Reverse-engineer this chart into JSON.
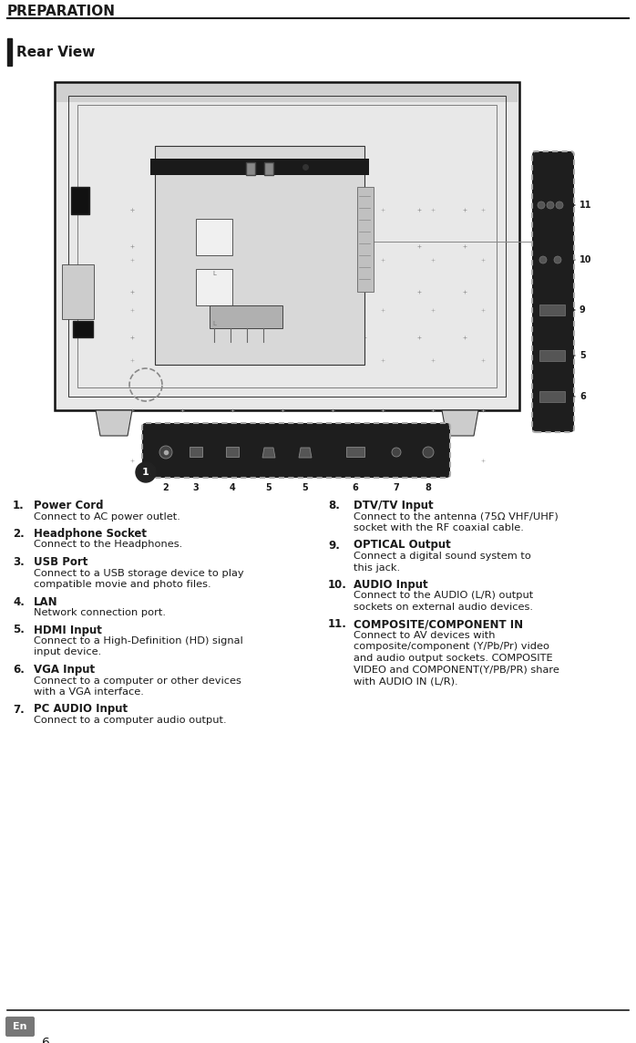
{
  "title": "PREPARATION",
  "section_label": "Rear View",
  "bg_color": "#ffffff",
  "title_color": "#1a1a1a",
  "text_color": "#1a1a1a",
  "page_num": "6",
  "lang_label": "En",
  "items_left": [
    {
      "num": "1.",
      "bold": "Power Cord",
      "text": "Connect to AC power outlet."
    },
    {
      "num": "2.",
      "bold": "Headphone Socket",
      "text": "Connect to the Headphones."
    },
    {
      "num": "3.",
      "bold": "USB Port",
      "text": "Connect to a USB storage device to play compatible movie and photo files."
    },
    {
      "num": "4.",
      "bold": "LAN",
      "text": "Network connection port."
    },
    {
      "num": "5.",
      "bold": "HDMI Input",
      "text": "Connect to a High-Definition (HD) signal input device."
    },
    {
      "num": "6.",
      "bold": "VGA Input",
      "text": "Connect to a computer or other devices with a VGA interface."
    },
    {
      "num": "7.",
      "bold": "PC AUDIO Input",
      "text": "Connect to a computer audio output."
    }
  ],
  "items_right": [
    {
      "num": "8.",
      "bold": "DTV/TV Input",
      "text": "Connect to the antenna (75Ω VHF/UHF) socket with the RF coaxial cable."
    },
    {
      "num": "9.",
      "bold": "OPTICAL Output",
      "text": "Connect a digital sound system to this jack."
    },
    {
      "num": "10.",
      "bold": "AUDIO Input",
      "text": "Connect  to  the AUDIO  (L/R)  output sockets on external audio devices."
    },
    {
      "num": "11.",
      "bold": "COMPOSITE/COMPONENT IN",
      "text": "Connect to AV devices with composite/component  (Y/Pb/Pr) video and audio output sockets. COMPOSITE VIDEO and COMPONENT(Y/PB/PR) share with  AUDIO IN (L/R)."
    }
  ]
}
